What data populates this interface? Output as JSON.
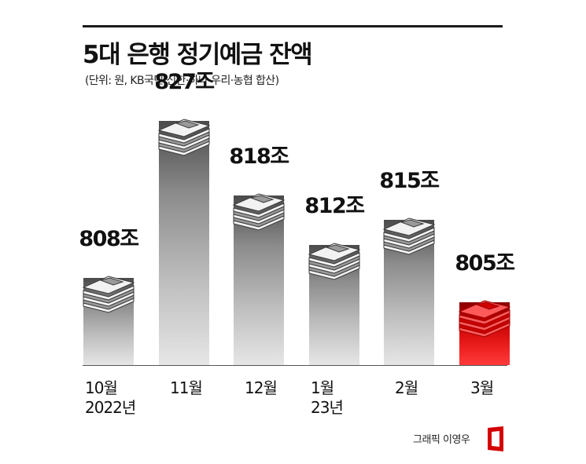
{
  "title": "5대 은행 정기예금 잔액",
  "subtitle": "(단위: 원, KB국민·신한·하나·우리·농협 합산)",
  "credit": "그래픽 이영우",
  "colors": {
    "bar": "#9e9e9e",
    "highlight": "#e60000",
    "text": "#111111"
  },
  "chart_data": {
    "type": "bar",
    "categories": [
      "10월",
      "11월",
      "12월",
      "1월",
      "2월",
      "3월"
    ],
    "x_sublabels": [
      "2022년",
      "",
      "",
      "23년",
      "",
      ""
    ],
    "values": [
      808,
      827,
      818,
      812,
      815,
      805
    ],
    "value_labels": [
      "808조",
      "827조",
      "818조",
      "812조",
      "815조",
      "805조"
    ],
    "highlight_index": 5,
    "icon": "money-stack-icon"
  }
}
